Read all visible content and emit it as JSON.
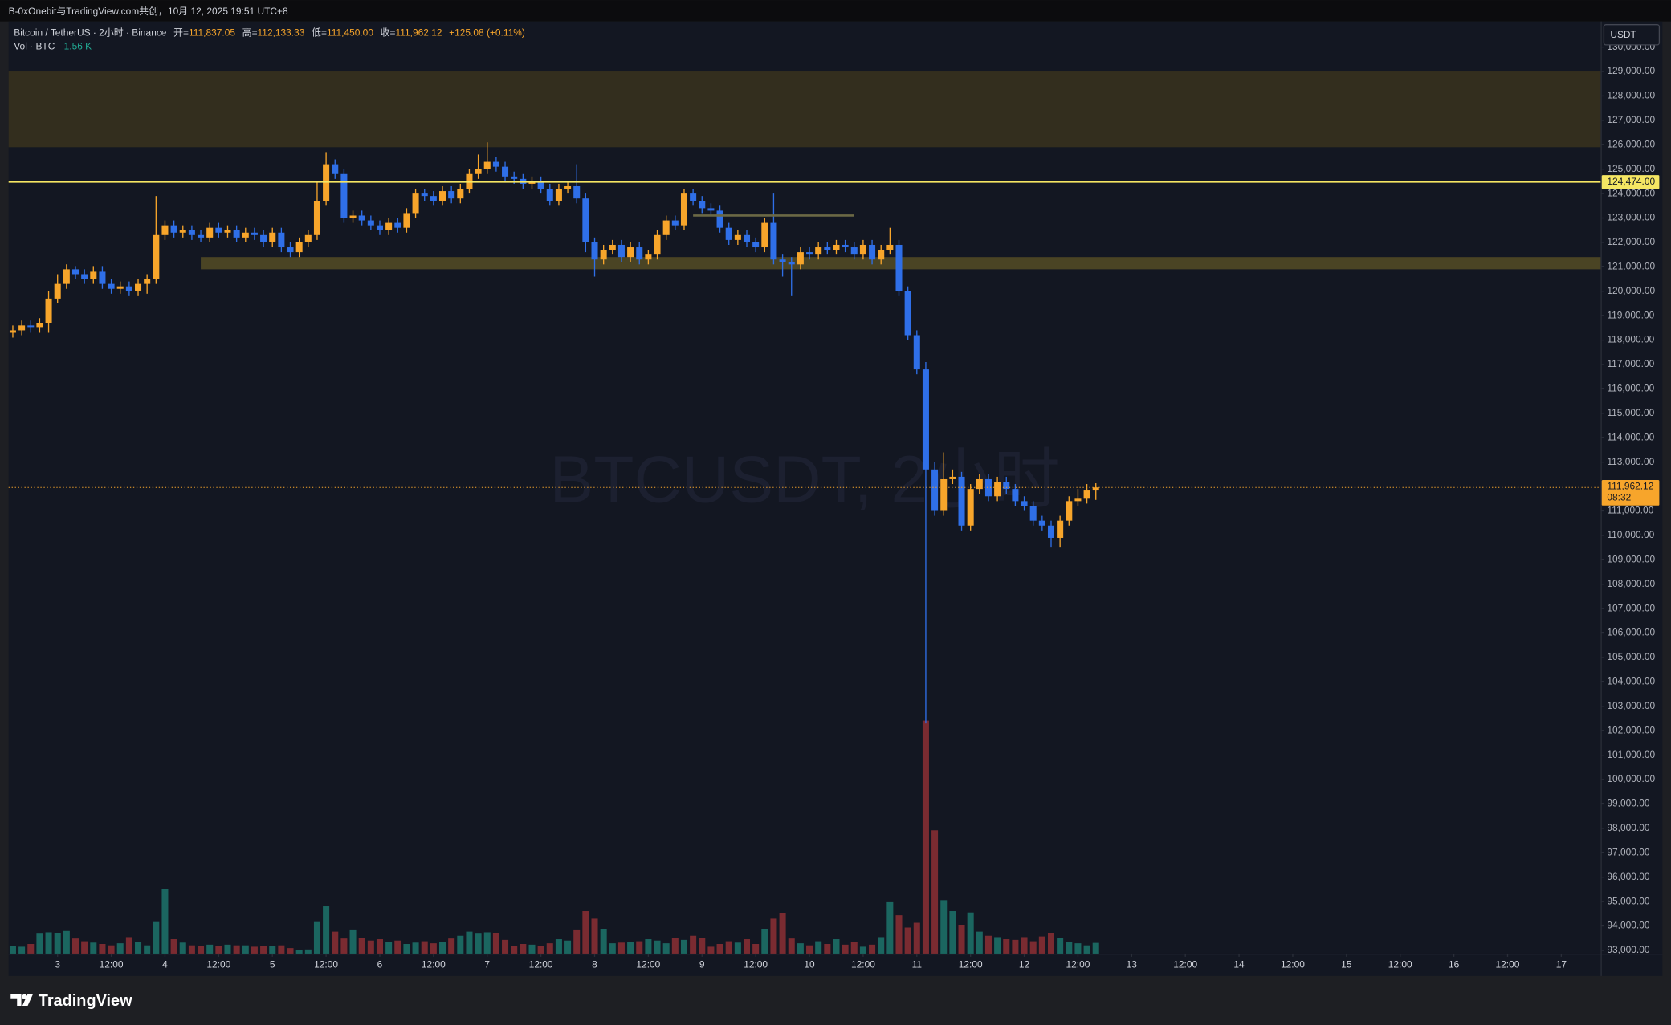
{
  "header": {
    "title": "B-0xOnebit与TradingView.com共创，10月 12, 2025 19:51 UTC+8"
  },
  "legend": {
    "symbol": "Bitcoin / TetherUS · 2小时 · Binance",
    "ohlc": [
      {
        "label": "开=",
        "value": "111,837.05"
      },
      {
        "label": "高=",
        "value": "112,133.33"
      },
      {
        "label": "低=",
        "value": "111,450.00"
      },
      {
        "label": "收=",
        "value": "111,962.12"
      }
    ],
    "change": "+125.08 (+0.11%)",
    "volume_label": "Vol · BTC",
    "volume_value": "1.56 K"
  },
  "chart_data": {
    "type": "candlestick",
    "watermark": "BTCUSDT, 2小时",
    "currency": "USDT",
    "up_color": "#f7a52b",
    "down_color": "#2f6fe8",
    "volume_up_color": "#1b6660",
    "volume_down_color": "#7a2b31",
    "open": [
      118300,
      118400,
      118600,
      118500,
      118700,
      119700,
      120300,
      120900,
      120700,
      120500,
      120800,
      120300,
      120100,
      120200,
      120000,
      120300,
      120500,
      122300,
      122700,
      122400,
      122500,
      122300,
      122200,
      122600,
      122400,
      122500,
      122200,
      122400,
      122300,
      122000,
      122400,
      121800,
      121600,
      122000,
      122300,
      123700,
      125200,
      124800,
      123000,
      123100,
      122900,
      122700,
      122500,
      122800,
      122600,
      123200,
      124000,
      123900,
      123700,
      124100,
      123800,
      124200,
      124800,
      125000,
      125300,
      125100,
      124700,
      124600,
      124400,
      124500,
      124200,
      123700,
      124200,
      124300,
      123800,
      122000,
      121300,
      121700,
      121900,
      121400,
      121800,
      121300,
      121500,
      122300,
      122900,
      122700,
      124000,
      123700,
      123400,
      123300,
      122600,
      122100,
      122300,
      122000,
      121800,
      122800,
      121300,
      121200,
      121100,
      121600,
      121500,
      121800,
      121700,
      121900,
      121800,
      121500,
      121900,
      121300,
      121700,
      121900,
      120000,
      118200,
      116800,
      112700,
      111000,
      112300,
      112400,
      110400,
      111900,
      112300,
      111600,
      112200,
      111900,
      111400,
      111200,
      110600,
      110400,
      109900,
      110600,
      111400,
      111500,
      111837.05
    ],
    "high": [
      118600,
      118800,
      118800,
      118900,
      120000,
      120700,
      121100,
      121000,
      120900,
      121000,
      121000,
      120500,
      120400,
      120400,
      120500,
      120700,
      123900,
      122900,
      122900,
      122700,
      122700,
      122500,
      122800,
      122800,
      122700,
      122700,
      122600,
      122600,
      122500,
      122600,
      122600,
      122000,
      122200,
      122500,
      124500,
      125700,
      125400,
      125000,
      123300,
      123300,
      123100,
      122900,
      123000,
      123000,
      123400,
      124200,
      124200,
      124100,
      124300,
      124300,
      124400,
      125000,
      125600,
      126100,
      125500,
      125300,
      124900,
      124800,
      124700,
      124700,
      124400,
      124400,
      124500,
      125200,
      124000,
      122200,
      121900,
      122100,
      122100,
      122000,
      122000,
      121700,
      122500,
      123100,
      123100,
      124200,
      124200,
      123900,
      123600,
      123500,
      122800,
      122500,
      122500,
      122200,
      123000,
      124000,
      121500,
      121400,
      121800,
      121800,
      122000,
      122000,
      122100,
      122100,
      122000,
      122100,
      122100,
      121900,
      122600,
      122100,
      120200,
      118400,
      117100,
      113000,
      113400,
      112700,
      112600,
      112100,
      112500,
      112500,
      112400,
      112400,
      112100,
      111600,
      111400,
      110800,
      110600,
      110800,
      111600,
      111900,
      112100,
      112133.33
    ],
    "low": [
      118100,
      118200,
      118300,
      118300,
      118300,
      119500,
      120100,
      120500,
      120300,
      120300,
      120100,
      119900,
      119900,
      119800,
      119800,
      119900,
      120300,
      122100,
      122200,
      122200,
      122100,
      122000,
      122000,
      122200,
      122200,
      122000,
      122000,
      122100,
      121800,
      121800,
      121600,
      121400,
      121400,
      121800,
      122100,
      123500,
      124600,
      122800,
      122800,
      122700,
      122500,
      122300,
      122300,
      122400,
      122400,
      123000,
      123700,
      123500,
      123500,
      123600,
      123600,
      124000,
      124600,
      124800,
      124900,
      124500,
      124400,
      124200,
      124200,
      124000,
      123500,
      123500,
      124000,
      123600,
      121600,
      120600,
      121100,
      121500,
      121200,
      121200,
      121100,
      121100,
      121300,
      122100,
      122500,
      122500,
      123500,
      123200,
      123100,
      122400,
      121900,
      121900,
      121800,
      121600,
      121600,
      121100,
      120600,
      119800,
      120900,
      121300,
      121300,
      121500,
      121500,
      121600,
      121300,
      121300,
      121100,
      121100,
      121500,
      119800,
      118000,
      116600,
      102300,
      110800,
      110800,
      112100,
      110200,
      110200,
      111700,
      111400,
      111400,
      111700,
      111200,
      111000,
      110400,
      110200,
      109500,
      109500,
      110400,
      111200,
      111300,
      111450
    ],
    "close": [
      118400,
      118600,
      118500,
      118700,
      119700,
      120300,
      120900,
      120700,
      120500,
      120800,
      120300,
      120100,
      120200,
      120000,
      120300,
      120500,
      122300,
      122700,
      122400,
      122500,
      122300,
      122200,
      122600,
      122400,
      122500,
      122200,
      122400,
      122300,
      122000,
      122400,
      121800,
      121600,
      122000,
      122300,
      123700,
      125200,
      124800,
      123000,
      123100,
      122900,
      122700,
      122500,
      122800,
      122600,
      123200,
      124000,
      123900,
      123700,
      124100,
      123800,
      124200,
      124800,
      125000,
      125300,
      125100,
      124700,
      124600,
      124400,
      124500,
      124200,
      123700,
      124200,
      124300,
      123800,
      122000,
      121300,
      121700,
      121900,
      121400,
      121800,
      121300,
      121500,
      122300,
      122900,
      122700,
      124000,
      123700,
      123400,
      123300,
      122600,
      122100,
      122300,
      122000,
      121800,
      122800,
      121300,
      121200,
      121100,
      121600,
      121500,
      121800,
      121700,
      121900,
      121800,
      121500,
      121900,
      121300,
      121700,
      121900,
      120000,
      118200,
      116800,
      112700,
      111000,
      112300,
      112400,
      110400,
      111900,
      112300,
      111600,
      112200,
      111900,
      111400,
      111200,
      110600,
      110400,
      109900,
      110600,
      111400,
      111500,
      111837.05,
      111962.12
    ],
    "volume": [
      1.1,
      1.0,
      1.4,
      2.9,
      3.1,
      3.0,
      3.3,
      2.2,
      1.8,
      1.6,
      1.4,
      1.2,
      1.5,
      2.4,
      1.7,
      1.2,
      4.6,
      9.4,
      2.1,
      1.6,
      1.2,
      1.1,
      1.3,
      1.1,
      1.3,
      1.2,
      1.2,
      1.0,
      1.1,
      1.1,
      1.2,
      0.8,
      0.5,
      0.6,
      4.6,
      6.9,
      3.2,
      2.2,
      3.4,
      2.3,
      1.9,
      2.1,
      1.7,
      1.9,
      1.4,
      1.6,
      1.8,
      1.5,
      1.7,
      2.2,
      2.6,
      3.2,
      2.9,
      3.1,
      3.0,
      2.0,
      1.1,
      1.4,
      1.3,
      1.1,
      1.5,
      2.1,
      1.9,
      3.4,
      6.2,
      5.1,
      3.6,
      1.5,
      1.6,
      1.7,
      1.8,
      2.1,
      1.9,
      1.5,
      2.3,
      2.0,
      2.6,
      2.3,
      1.0,
      1.4,
      1.8,
      1.6,
      2.1,
      1.4,
      3.6,
      5.1,
      5.9,
      2.2,
      1.5,
      1.2,
      1.8,
      1.4,
      2.1,
      1.3,
      1.7,
      1.0,
      1.3,
      2.4,
      7.5,
      5.6,
      3.8,
      4.5,
      34.0,
      18.0,
      7.8,
      6.2,
      4.1,
      6.0,
      3.2,
      2.6,
      2.4,
      2.1,
      2.0,
      2.4,
      1.8,
      2.5,
      3.0,
      2.3,
      1.7,
      1.5,
      1.2,
      1.56
    ],
    "volume_ylim": [
      0,
      136
    ],
    "ylim": [
      92870,
      131050
    ],
    "yticks": [
      {
        "value": 93000,
        "label": "93,000.00"
      },
      {
        "value": 94000,
        "label": "94,000.00"
      },
      {
        "value": 95000,
        "label": "95,000.00"
      },
      {
        "value": 96000,
        "label": "96,000.00"
      },
      {
        "value": 97000,
        "label": "97,000.00"
      },
      {
        "value": 98000,
        "label": "98,000.00"
      },
      {
        "value": 99000,
        "label": "99,000.00"
      },
      {
        "value": 100000,
        "label": "100,000.00"
      },
      {
        "value": 101000,
        "label": "101,000.00"
      },
      {
        "value": 102000,
        "label": "102,000.00"
      },
      {
        "value": 103000,
        "label": "103,000.00"
      },
      {
        "value": 104000,
        "label": "104,000.00"
      },
      {
        "value": 105000,
        "label": "105,000.00"
      },
      {
        "value": 106000,
        "label": "106,000.00"
      },
      {
        "value": 107000,
        "label": "107,000.00"
      },
      {
        "value": 108000,
        "label": "108,000.00"
      },
      {
        "value": 109000,
        "label": "109,000.00"
      },
      {
        "value": 110000,
        "label": "110,000.00"
      },
      {
        "value": 111000,
        "label": "111,000.00"
      },
      {
        "value": 112000,
        "label": "112,000.00"
      },
      {
        "value": 113000,
        "label": "113,000.00"
      },
      {
        "value": 114000,
        "label": "114,000.00"
      },
      {
        "value": 115000,
        "label": "115,000.00"
      },
      {
        "value": 116000,
        "label": "116,000.00"
      },
      {
        "value": 117000,
        "label": "117,000.00"
      },
      {
        "value": 118000,
        "label": "118,000.00"
      },
      {
        "value": 119000,
        "label": "119,000.00"
      },
      {
        "value": 120000,
        "label": "120,000.00"
      },
      {
        "value": 121000,
        "label": "121,000.00"
      },
      {
        "value": 122000,
        "label": "122,000.00"
      },
      {
        "value": 123000,
        "label": "123,000.00"
      },
      {
        "value": 124000,
        "label": "124,000.00"
      },
      {
        "value": 125000,
        "label": "125,000.00"
      },
      {
        "value": 126000,
        "label": "126,000.00"
      },
      {
        "value": 127000,
        "label": "127,000.00"
      },
      {
        "value": 128000,
        "label": "128,000.00"
      },
      {
        "value": 129000,
        "label": "129,000.00"
      },
      {
        "value": 130000,
        "label": "130,000.00"
      }
    ],
    "xlim": [
      -0.48,
      177.4
    ],
    "xticks": [
      {
        "value": 5,
        "label": "3"
      },
      {
        "value": 11,
        "label": "12:00"
      },
      {
        "value": 17,
        "label": "4"
      },
      {
        "value": 23,
        "label": "12:00"
      },
      {
        "value": 29,
        "label": "5"
      },
      {
        "value": 35,
        "label": "12:00"
      },
      {
        "value": 41,
        "label": "6"
      },
      {
        "value": 47,
        "label": "12:00"
      },
      {
        "value": 53,
        "label": "7"
      },
      {
        "value": 59,
        "label": "12:00"
      },
      {
        "value": 65,
        "label": "8"
      },
      {
        "value": 71,
        "label": "12:00"
      },
      {
        "value": 77,
        "label": "9"
      },
      {
        "value": 83,
        "label": "12:00"
      },
      {
        "value": 89,
        "label": "10"
      },
      {
        "value": 95,
        "label": "12:00"
      },
      {
        "value": 101,
        "label": "11"
      },
      {
        "value": 107,
        "label": "12:00"
      },
      {
        "value": 113,
        "label": "12"
      },
      {
        "value": 119,
        "label": "12:00"
      },
      {
        "value": 125,
        "label": "13"
      },
      {
        "value": 131,
        "label": "12:00"
      },
      {
        "value": 137,
        "label": "14"
      },
      {
        "value": 143,
        "label": "12:00"
      },
      {
        "value": 149,
        "label": "15"
      },
      {
        "value": 155,
        "label": "12:00"
      },
      {
        "value": 161,
        "label": "16"
      },
      {
        "value": 167,
        "label": "12:00"
      },
      {
        "value": 173,
        "label": "17"
      }
    ],
    "zones": [
      {
        "ylim": [
          125900,
          129000
        ],
        "color": "#332e1e"
      },
      {
        "ylim": [
          120900,
          121400
        ],
        "xstart": 21,
        "color": "#4a4424"
      }
    ],
    "segments": [
      {
        "value": 123100,
        "x": [
          76,
          94
        ],
        "color": "#6b6845"
      }
    ],
    "levels": [
      {
        "value": 124474,
        "label": "124,474.00",
        "color": "#f5e663"
      }
    ],
    "last_price": {
      "value": 111962.12,
      "label": "111,962.12",
      "countdown": "08:32",
      "color": "#f7a52b"
    }
  },
  "footer": {
    "brand": "TradingView"
  }
}
